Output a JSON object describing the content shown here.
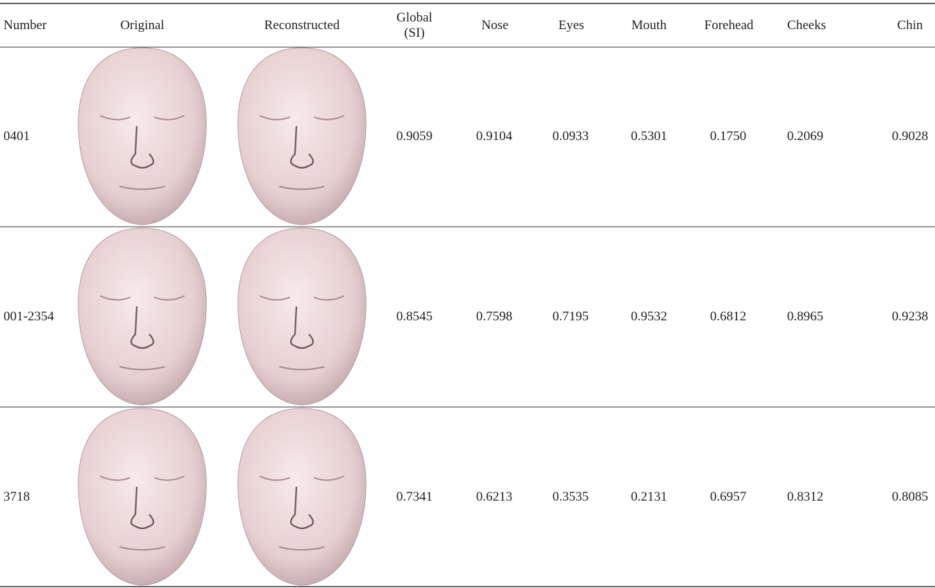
{
  "table": {
    "headers": [
      "Number",
      "Original",
      "Reconstructed",
      "Global (SI)",
      "Nose",
      "Eyes",
      "Mouth",
      "Forehead",
      "Cheeks",
      "Chin"
    ],
    "rows": [
      {
        "number": "0401",
        "values": [
          "0.9059",
          "0.9104",
          "0.0933",
          "0.5301",
          "0.1750",
          "0.2069",
          "0.9028"
        ]
      },
      {
        "number": "001-2354",
        "values": [
          "0.8545",
          "0.7598",
          "0.7195",
          "0.9532",
          "0.6812",
          "0.8965",
          "0.9238"
        ]
      },
      {
        "number": "3718",
        "values": [
          "0.7341",
          "0.6213",
          "0.3535",
          "0.2131",
          "0.6957",
          "0.8312",
          "0.8085"
        ]
      }
    ]
  }
}
